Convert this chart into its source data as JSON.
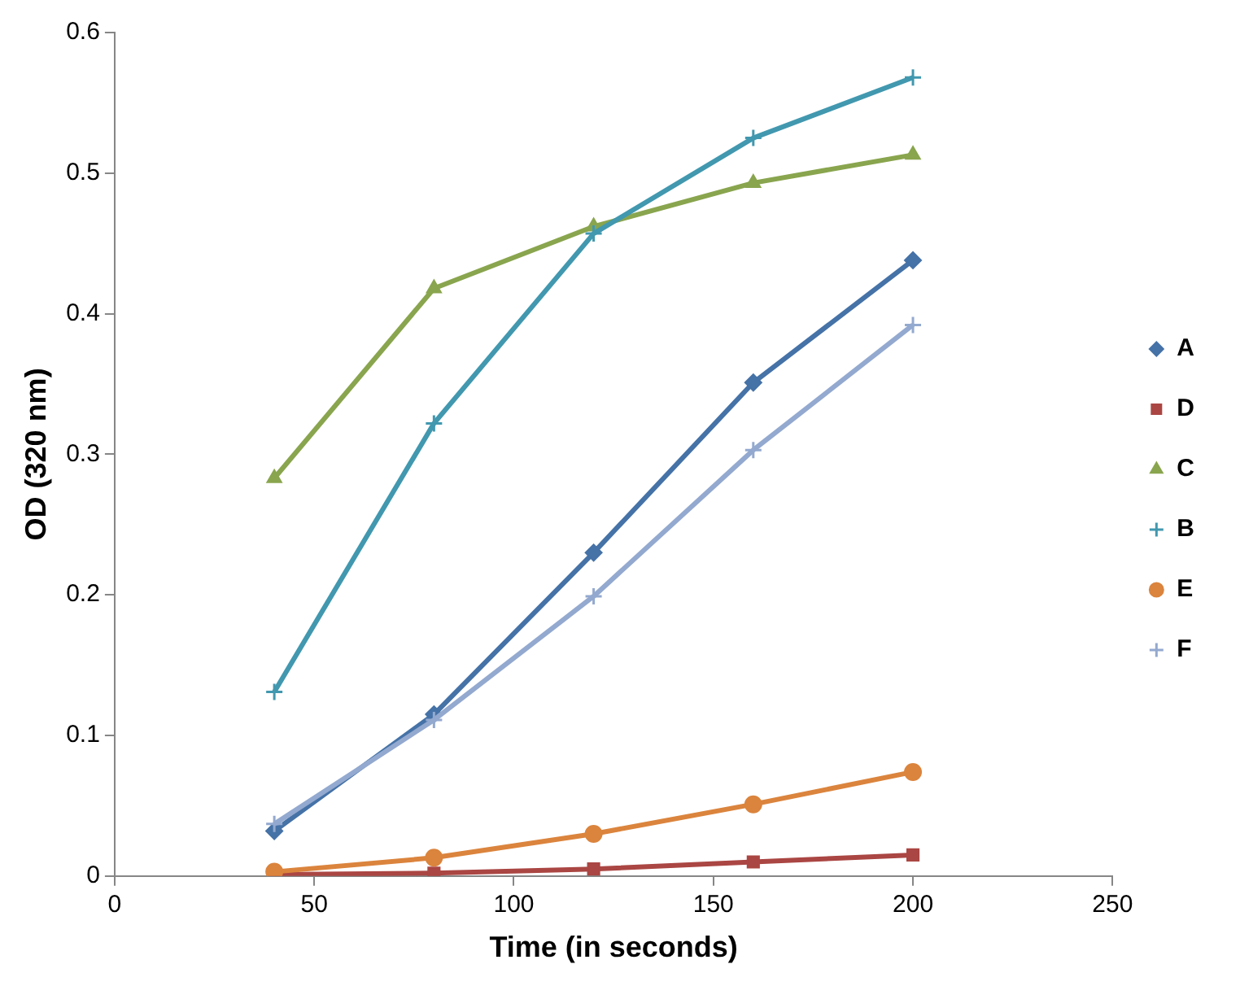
{
  "chart_data": {
    "type": "line",
    "xlabel": "Time (in seconds)",
    "ylabel": "OD (320 nm)",
    "x": [
      40,
      80,
      120,
      160,
      200
    ],
    "xlim": [
      0,
      250
    ],
    "xticks": [
      0,
      50,
      100,
      150,
      200,
      250
    ],
    "ylim": [
      0,
      0.6
    ],
    "yticks": [
      0,
      0.1,
      0.2,
      0.3,
      0.4,
      0.5,
      0.6
    ],
    "grid": false,
    "legend": "right",
    "series": [
      {
        "name": "A",
        "color": "#4572a7",
        "marker": "diamond",
        "values": [
          0.032,
          0.115,
          0.23,
          0.351,
          0.438
        ]
      },
      {
        "name": "D",
        "color": "#aa4643",
        "marker": "square",
        "values": [
          0.001,
          0.002,
          0.005,
          0.01,
          0.015
        ]
      },
      {
        "name": "C",
        "color": "#89a54e",
        "marker": "triangle",
        "values": [
          0.283,
          0.418,
          0.462,
          0.493,
          0.513
        ]
      },
      {
        "name": "B",
        "color": "#4198af",
        "marker": "cross",
        "values": [
          0.131,
          0.322,
          0.457,
          0.525,
          0.568
        ]
      },
      {
        "name": "E",
        "color": "#db843d",
        "marker": "circle",
        "values": [
          0.003,
          0.013,
          0.03,
          0.051,
          0.074
        ]
      },
      {
        "name": "F",
        "color": "#93a9cf",
        "marker": "cross",
        "values": [
          0.037,
          0.111,
          0.199,
          0.303,
          0.392
        ]
      }
    ]
  }
}
